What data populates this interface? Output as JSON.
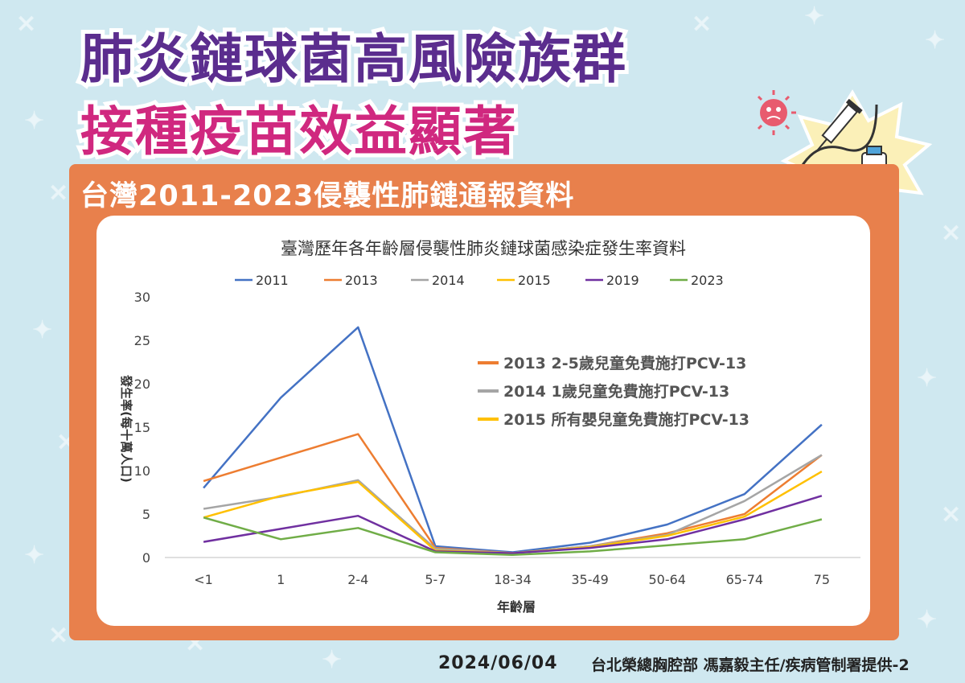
{
  "headline": {
    "line1": "肺炎鏈球菌高風險族群",
    "line2": "接種疫苗效益顯著"
  },
  "panel_title": "台灣2011-2023侵襲性肺鏈通報資料",
  "footer": {
    "date": "2024/06/04",
    "credit": "台北榮總胸腔部 馮嘉毅主任/疾病管制署提供-2"
  },
  "chart_data": {
    "type": "line",
    "title": "臺灣歷年各年齡層侵襲性肺炎鏈球菌感染症發生率資料",
    "xlabel": "年齡層",
    "ylabel": "發生率(每十萬人口)",
    "ylim": [
      0,
      30
    ],
    "yticks": [
      0,
      5,
      10,
      15,
      20,
      25,
      30
    ],
    "grid": false,
    "legend_placement": "top",
    "categories": [
      "<1",
      "1",
      "2-4",
      "5-7",
      "18-34",
      "35-49",
      "50-64",
      "65-74",
      "75"
    ],
    "series": [
      {
        "name": "2011",
        "color": "#4472c4",
        "values": [
          8.0,
          18.4,
          26.5,
          1.3,
          0.6,
          1.7,
          3.8,
          7.3,
          15.3
        ]
      },
      {
        "name": "2013",
        "color": "#ed7d31",
        "values": [
          8.8,
          11.5,
          14.2,
          1.1,
          0.5,
          1.3,
          2.8,
          5.0,
          11.8
        ]
      },
      {
        "name": "2014",
        "color": "#a5a5a5",
        "values": [
          5.6,
          7.0,
          8.9,
          1.0,
          0.5,
          1.3,
          2.6,
          6.5,
          11.8
        ]
      },
      {
        "name": "2015",
        "color": "#ffc000",
        "values": [
          4.6,
          7.1,
          8.7,
          0.8,
          0.5,
          1.2,
          2.5,
          4.7,
          9.9
        ]
      },
      {
        "name": "2019",
        "color": "#7030a0",
        "values": [
          1.8,
          3.3,
          4.8,
          0.7,
          0.5,
          1.1,
          2.1,
          4.4,
          7.1
        ]
      },
      {
        "name": "2023",
        "color": "#70ad47",
        "values": [
          4.6,
          2.1,
          3.4,
          0.6,
          0.3,
          0.7,
          1.4,
          2.1,
          4.4
        ]
      }
    ],
    "annotations": [
      {
        "label": "2013  2-5歲兒童免費施打PCV-13",
        "color": "#ed7d31"
      },
      {
        "label": "2014  1歲兒童免費施打PCV-13",
        "color": "#a5a5a5"
      },
      {
        "label": "2015   所有嬰兒童免費施打PCV-13",
        "color": "#ffc000"
      }
    ]
  }
}
